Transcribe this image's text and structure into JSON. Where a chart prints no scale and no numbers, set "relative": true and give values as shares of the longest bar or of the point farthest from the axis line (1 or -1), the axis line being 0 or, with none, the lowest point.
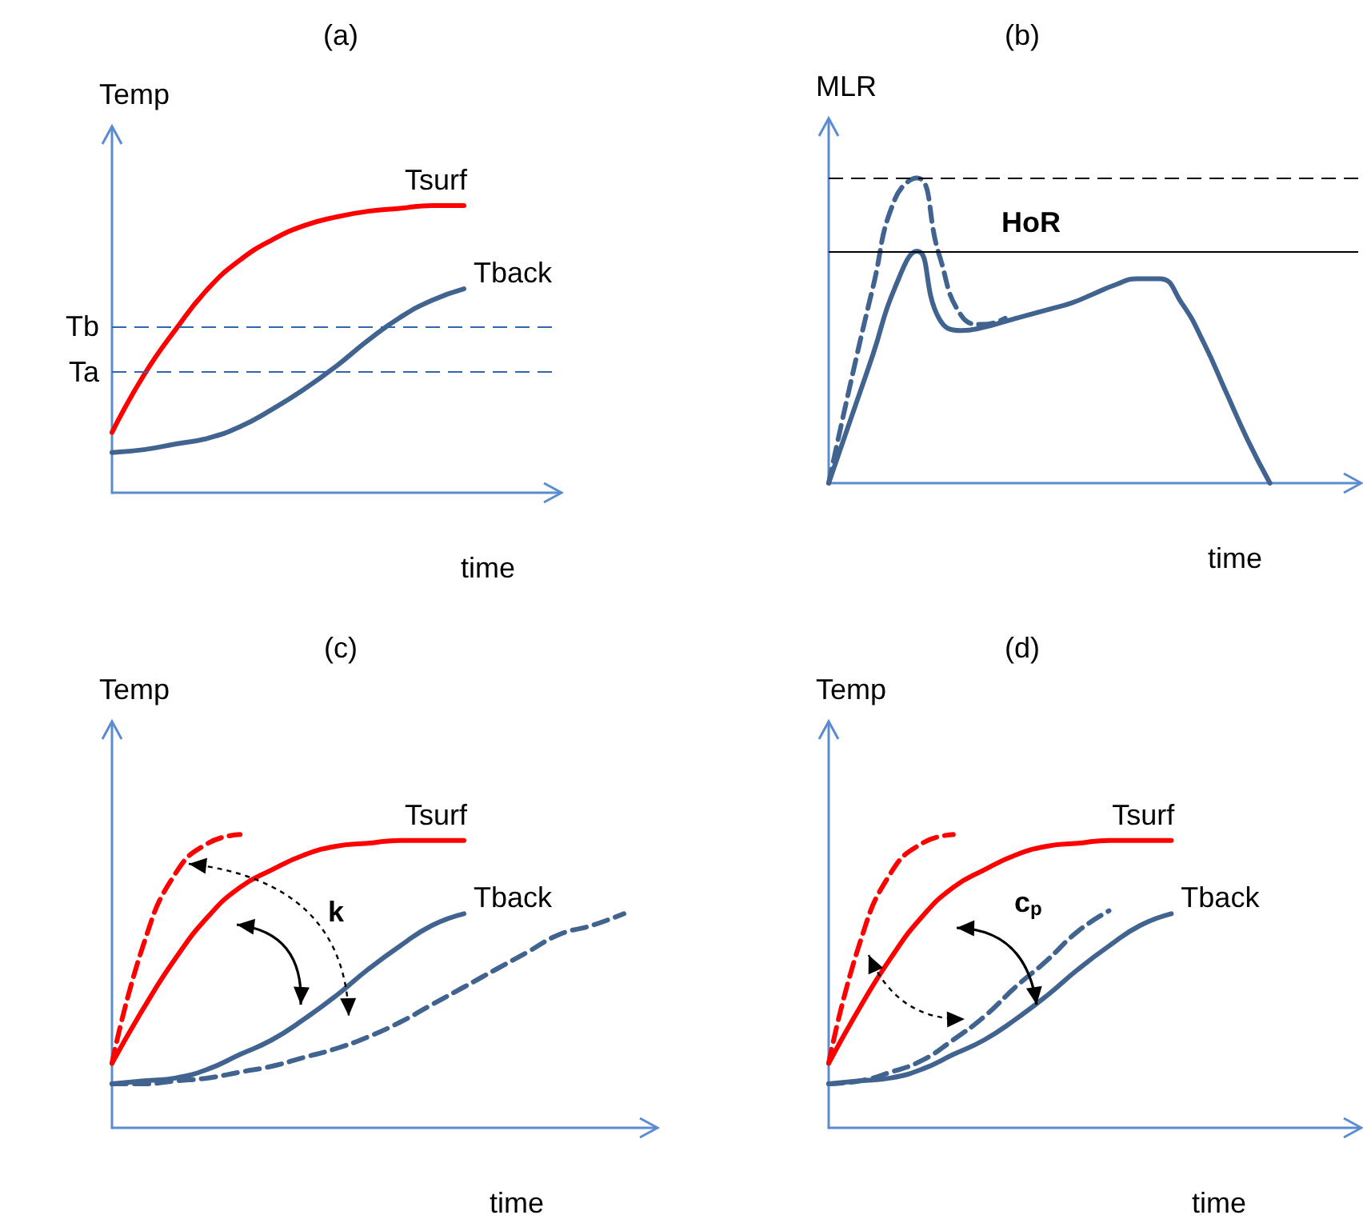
{
  "chart_data": [
    {
      "type": "line",
      "title": "(a)",
      "xlabel": "time",
      "ylabel": "Temp",
      "relative": true,
      "grid": false,
      "legend": false,
      "marker": "none",
      "categories": [
        null,
        null,
        null,
        null,
        null,
        null,
        null,
        null,
        null,
        null,
        null,
        null,
        null,
        null,
        null
      ],
      "series": [
        {
          "name": "Tsurf",
          "color": "#ff0000",
          "line_style": "solid",
          "values": [
            0.21,
            0.41,
            0.57,
            0.71,
            0.81,
            0.88,
            0.93,
            0.96,
            0.98,
            0.99,
            1.0,
            1.0,
            null,
            null,
            null
          ]
        },
        {
          "name": "Tback",
          "color": "#41638f",
          "line_style": "solid",
          "values": [
            0.14,
            0.15,
            0.17,
            0.19,
            0.23,
            0.29,
            0.36,
            0.44,
            0.53,
            0.61,
            0.67,
            0.71,
            null,
            null,
            null
          ]
        }
      ],
      "ref_lines": [
        {
          "axis": "y",
          "value": 0.42,
          "label": "Ta",
          "color": "#2e64b0",
          "line_style": "dashed"
        },
        {
          "axis": "y",
          "value": 0.58,
          "label": "Tb",
          "color": "#2e64b0",
          "line_style": "dashed"
        }
      ]
    },
    {
      "type": "line",
      "title": "(b)",
      "xlabel": "time",
      "ylabel": "MLR",
      "relative": true,
      "grid": false,
      "legend": false,
      "marker": "none",
      "categories": [
        null,
        null,
        null,
        null,
        null,
        null,
        null,
        null,
        null,
        null,
        null,
        null,
        null,
        null,
        null,
        null,
        null,
        null,
        null,
        null,
        null,
        null,
        null,
        null,
        null
      ],
      "series": [
        {
          "color": "#41638f",
          "line_style": "solid",
          "values": [
            0,
            0.21,
            0.42,
            0.64,
            0.76,
            0.54,
            0.5,
            0.51,
            0.53,
            0.55,
            0.57,
            0.59,
            0.62,
            0.65,
            0.67,
            0.67,
            0.59,
            0.46,
            0.3,
            0.14,
            0,
            null,
            null,
            null,
            null
          ]
        },
        {
          "color": "#41638f",
          "line_style": "dashed",
          "values": [
            0,
            0.33,
            0.64,
            0.93,
            1.0,
            0.75,
            0.55,
            0.52,
            0.54,
            null,
            null,
            null,
            null,
            null,
            null,
            null,
            null,
            null,
            null,
            null,
            null,
            null,
            null,
            null,
            null
          ]
        }
      ],
      "ref_lines": [
        {
          "axis": "y",
          "value": 1.0,
          "color": "#000000",
          "line_style": "dashed"
        },
        {
          "axis": "y",
          "value": 0.76,
          "color": "#000000",
          "line_style": "solid"
        }
      ],
      "annotations": [
        "HoR"
      ]
    },
    {
      "type": "line",
      "title": "(c)",
      "xlabel": "time",
      "ylabel": "Temp",
      "relative": true,
      "grid": false,
      "legend": false,
      "marker": "none",
      "categories": [
        null,
        null,
        null,
        null,
        null,
        null,
        null,
        null,
        null,
        null,
        null,
        null,
        null,
        null,
        null,
        null,
        null,
        null
      ],
      "series": [
        {
          "name": "Tsurf",
          "color": "#ff0000",
          "line_style": "solid",
          "values": [
            0.22,
            0.41,
            0.58,
            0.72,
            0.82,
            0.88,
            0.93,
            0.96,
            0.97,
            0.98,
            0.98,
            0.98,
            null,
            null,
            null,
            null,
            null,
            null
          ]
        },
        {
          "color": "#ff0000",
          "line_style": "dashed",
          "values": [
            0.22,
            0.63,
            0.87,
            0.97,
            1.0,
            null,
            null,
            null,
            null,
            null,
            null,
            null,
            null,
            null,
            null,
            null,
            null,
            null
          ]
        },
        {
          "name": "Tback",
          "color": "#41638f",
          "line_style": "solid",
          "values": [
            0.15,
            0.16,
            0.17,
            0.2,
            0.25,
            0.3,
            0.37,
            0.45,
            0.54,
            0.62,
            0.69,
            0.73,
            null,
            null,
            null,
            null,
            null,
            null
          ]
        },
        {
          "color": "#41638f",
          "line_style": "dashed",
          "values": [
            0.15,
            0.15,
            0.16,
            0.17,
            0.19,
            0.21,
            0.24,
            0.27,
            0.31,
            0.36,
            0.42,
            0.48,
            0.54,
            0.6,
            0.66,
            0.69,
            0.73,
            null
          ]
        }
      ],
      "annotations": [
        "k"
      ]
    },
    {
      "type": "line",
      "title": "(d)",
      "xlabel": "time",
      "ylabel": "Temp",
      "relative": true,
      "grid": false,
      "legend": false,
      "marker": "none",
      "categories": [
        null,
        null,
        null,
        null,
        null,
        null,
        null,
        null,
        null,
        null,
        null,
        null,
        null,
        null,
        null,
        null,
        null,
        null
      ],
      "series": [
        {
          "name": "Tsurf",
          "color": "#ff0000",
          "line_style": "solid",
          "values": [
            0.22,
            0.41,
            0.58,
            0.72,
            0.82,
            0.88,
            0.93,
            0.96,
            0.97,
            0.98,
            0.98,
            0.98,
            null,
            null,
            null,
            null,
            null,
            null
          ]
        },
        {
          "color": "#ff0000",
          "line_style": "dashed",
          "values": [
            0.22,
            0.63,
            0.87,
            0.97,
            1.0,
            null,
            null,
            null,
            null,
            null,
            null,
            null,
            null,
            null,
            null,
            null,
            null,
            null
          ]
        },
        {
          "name": "Tback",
          "color": "#41638f",
          "line_style": "solid",
          "values": [
            0.15,
            0.16,
            0.17,
            0.2,
            0.25,
            0.3,
            0.37,
            0.45,
            0.54,
            0.62,
            0.69,
            0.73,
            null,
            null,
            null,
            null,
            null,
            null
          ]
        },
        {
          "color": "#41638f",
          "line_style": "dashed",
          "values": [
            0.15,
            0.16,
            0.19,
            0.23,
            0.3,
            0.38,
            0.48,
            0.57,
            0.67,
            0.74,
            null,
            null,
            null,
            null,
            null,
            null,
            null,
            null
          ]
        }
      ],
      "annotations": [
        "c$_{p}$"
      ]
    }
  ]
}
